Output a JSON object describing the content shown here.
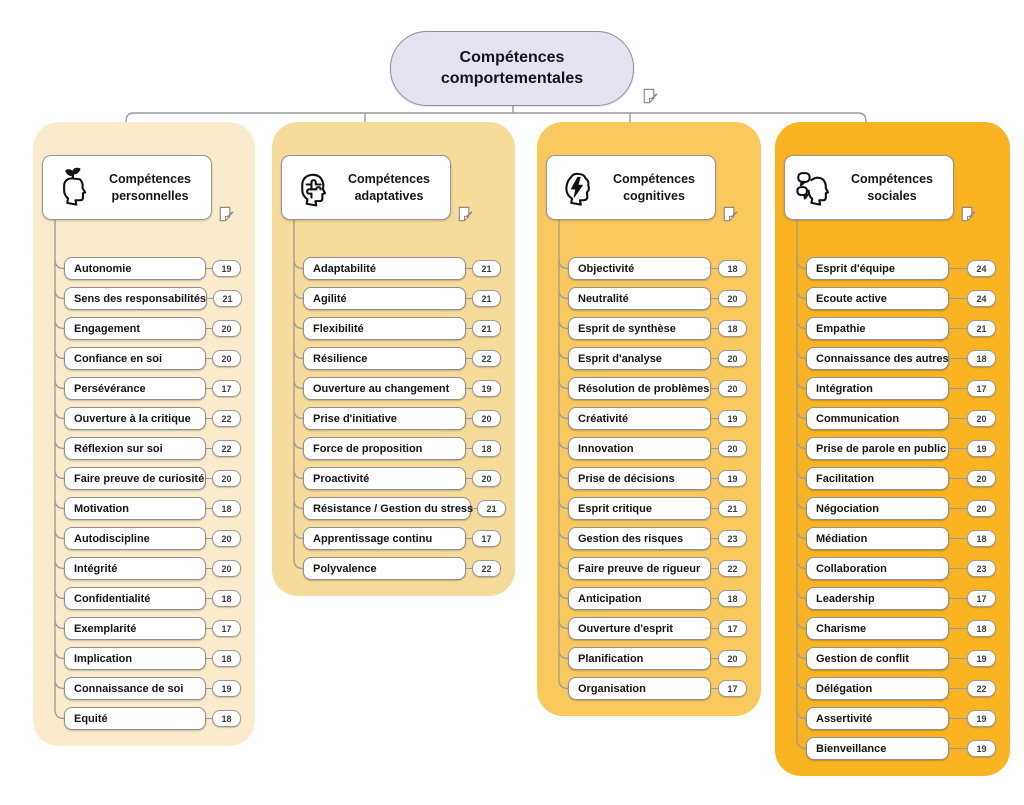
{
  "root": {
    "title": "Compétences comportementales",
    "note_icon": "note-icon"
  },
  "colors": {
    "root_bg": "#e4e4f1",
    "branch_personnelles": "#faeccb",
    "branch_adaptatives": "#f6db9a",
    "branch_cognitives": "#fac95e",
    "branch_sociales": "#fab321",
    "connector": "#9a9a9a"
  },
  "branches": [
    {
      "title": "Compétences personnelles",
      "icon": "head-sprout-icon",
      "bg": "#faeccb",
      "items": [
        {
          "label": "Autonomie",
          "value": 19
        },
        {
          "label": "Sens des responsabilités",
          "value": 21
        },
        {
          "label": "Engagement",
          "value": 20
        },
        {
          "label": "Confiance en soi",
          "value": 20
        },
        {
          "label": "Persévérance",
          "value": 17
        },
        {
          "label": "Ouverture à la critique",
          "value": 22
        },
        {
          "label": "Réflexion sur soi",
          "value": 22
        },
        {
          "label": "Faire preuve de curiosité",
          "value": 20
        },
        {
          "label": "Motivation",
          "value": 18
        },
        {
          "label": "Autodiscipline",
          "value": 20
        },
        {
          "label": "Intégrité",
          "value": 20
        },
        {
          "label": "Confidentialité",
          "value": 18
        },
        {
          "label": "Exemplarité",
          "value": 17
        },
        {
          "label": "Implication",
          "value": 18
        },
        {
          "label": "Connaissance de soi",
          "value": 19
        },
        {
          "label": "Equité",
          "value": 18
        }
      ]
    },
    {
      "title": "Compétences adaptatives",
      "icon": "head-puzzle-icon",
      "bg": "#f6db9a",
      "items": [
        {
          "label": "Adaptabilité",
          "value": 21
        },
        {
          "label": "Agilité",
          "value": 21
        },
        {
          "label": "Flexibilité",
          "value": 21
        },
        {
          "label": "Résilience",
          "value": 22
        },
        {
          "label": "Ouverture au changement",
          "value": 19
        },
        {
          "label": "Prise d'initiative",
          "value": 20
        },
        {
          "label": "Force de proposition",
          "value": 18
        },
        {
          "label": "Proactivité",
          "value": 20
        },
        {
          "label": "Résistance / Gestion du stress",
          "value": 21
        },
        {
          "label": "Apprentissage continu",
          "value": 17
        },
        {
          "label": "Polyvalence",
          "value": 22
        }
      ]
    },
    {
      "title": "Compétences cognitives",
      "icon": "head-lightning-icon",
      "bg": "#fac95e",
      "items": [
        {
          "label": "Objectivité",
          "value": 18
        },
        {
          "label": "Neutralité",
          "value": 20
        },
        {
          "label": "Esprit de synthèse",
          "value": 18
        },
        {
          "label": "Esprit d'analyse",
          "value": 20
        },
        {
          "label": "Résolution de problèmes",
          "value": 20
        },
        {
          "label": "Créativité",
          "value": 19
        },
        {
          "label": "Innovation",
          "value": 20
        },
        {
          "label": "Prise de décisions",
          "value": 19
        },
        {
          "label": "Esprit critique",
          "value": 21
        },
        {
          "label": "Gestion des risques",
          "value": 23
        },
        {
          "label": "Faire preuve de rigueur",
          "value": 22
        },
        {
          "label": "Anticipation",
          "value": 18
        },
        {
          "label": "Ouverture d'esprit",
          "value": 17
        },
        {
          "label": "Planification",
          "value": 20
        },
        {
          "label": "Organisation",
          "value": 17
        }
      ]
    },
    {
      "title": "Compétences sociales",
      "icon": "head-bubbles-icon",
      "bg": "#fab321",
      "items": [
        {
          "label": "Esprit d'équipe",
          "value": 24
        },
        {
          "label": "Ecoute active",
          "value": 24
        },
        {
          "label": "Empathie",
          "value": 21
        },
        {
          "label": "Connaissance des autres",
          "value": 18
        },
        {
          "label": "Intégration",
          "value": 17
        },
        {
          "label": "Communication",
          "value": 20
        },
        {
          "label": "Prise de parole en public",
          "value": 19
        },
        {
          "label": "Facilitation",
          "value": 20
        },
        {
          "label": "Négociation",
          "value": 20
        },
        {
          "label": "Médiation",
          "value": 18
        },
        {
          "label": "Collaboration",
          "value": 23
        },
        {
          "label": "Leadership",
          "value": 17
        },
        {
          "label": "Charisme",
          "value": 18
        },
        {
          "label": "Gestion de conflit",
          "value": 19
        },
        {
          "label": "Délégation",
          "value": 22
        },
        {
          "label": "Assertivité",
          "value": 19
        },
        {
          "label": "Bienveillance",
          "value": 19
        }
      ]
    }
  ]
}
